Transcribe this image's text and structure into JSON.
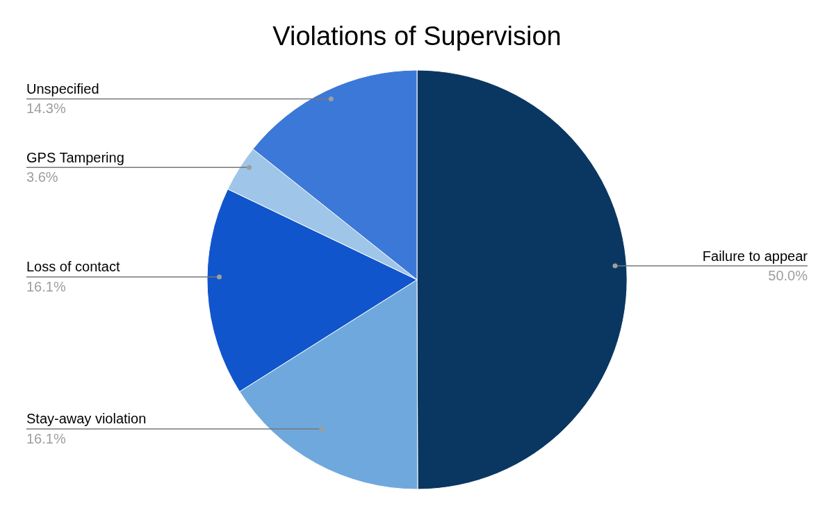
{
  "chart_data": {
    "type": "pie",
    "title": "Violations of Supervision",
    "categories": [
      "Failure to appear",
      "Stay-away violation",
      "Loss of contact",
      "GPS Tampering",
      "Unspecified"
    ],
    "values": [
      50.0,
      16.1,
      16.1,
      3.6,
      14.3
    ],
    "colors": [
      "#0a3761",
      "#6fa8dc",
      "#1155cc",
      "#9fc5e8",
      "#3c78d8"
    ],
    "value_labels": [
      "50.0%",
      "16.1%",
      "16.1%",
      "3.6%",
      "14.3%"
    ]
  }
}
